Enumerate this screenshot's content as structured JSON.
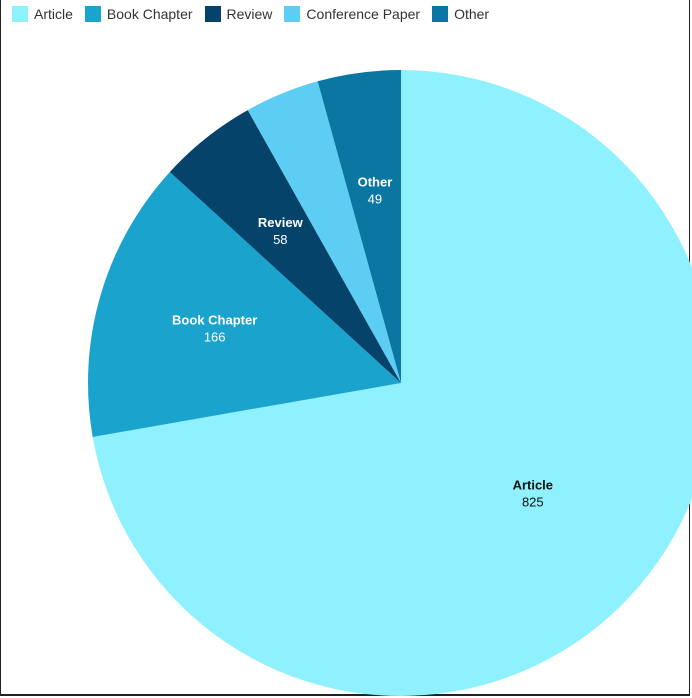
{
  "chart_data": {
    "type": "pie",
    "legend_position": "top-left",
    "slices": [
      {
        "label": "Article",
        "value": 825,
        "color": "#8ef1fd",
        "label_color": "#111111",
        "show_label": true
      },
      {
        "label": "Book Chapter",
        "value": 166,
        "color": "#1aa3cd",
        "label_color": "#ffffff",
        "show_label": true
      },
      {
        "label": "Review",
        "value": 58,
        "color": "#05436b",
        "label_color": "#ffffff",
        "show_label": true
      },
      {
        "label": "Conference Paper",
        "value": 44,
        "color": "#5dcdf4",
        "label_color": "#ffffff",
        "show_label": false
      },
      {
        "label": "Other",
        "value": 49,
        "color": "#0a77a2",
        "label_color": "#ffffff",
        "show_label": true
      }
    ]
  }
}
